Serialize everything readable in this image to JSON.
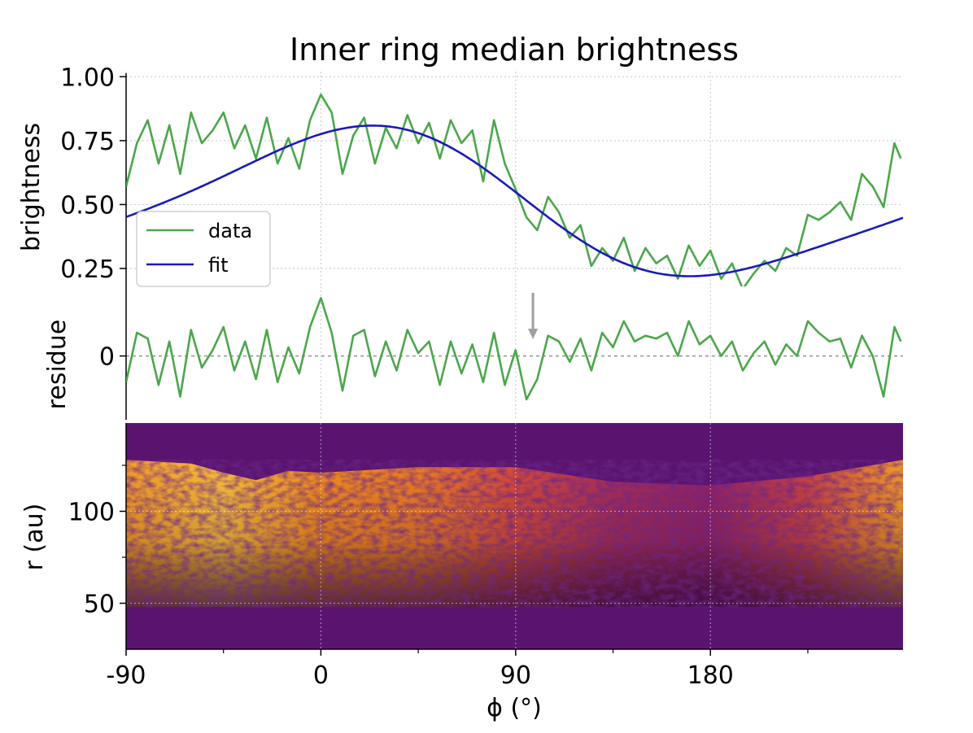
{
  "title": "Inner ring median brightness",
  "x_axis": {
    "label": "ϕ (°)",
    "ticks": [
      -90,
      0,
      90,
      180
    ],
    "tick_labels": [
      "-90",
      "0",
      "90",
      "180"
    ],
    "minor_ticks": [
      -45,
      45,
      135,
      225
    ],
    "range": [
      -90,
      269
    ]
  },
  "colors": {
    "data": "#4ca64c",
    "fit": "#1a1ab8",
    "grid": "#cfcfcf",
    "zero_line": "#999999",
    "arrow": "#a0a0a0",
    "heatmap_bg": "#5a1470"
  },
  "chart_data": [
    {
      "panel": "top",
      "type": "line",
      "title": "Inner ring median brightness",
      "xlabel": "",
      "ylabel": "brightness",
      "ylim": [
        0.18,
        1.02
      ],
      "yticks": [
        0.25,
        0.5,
        0.75,
        1.0
      ],
      "ytick_labels": [
        "0.25",
        "0.50",
        "0.75",
        "1.00"
      ],
      "grid": true,
      "legend": {
        "placement": "center-left",
        "entries": [
          "data",
          "fit"
        ]
      },
      "fit_model": {
        "offset": 0.5,
        "amp1": 0.28,
        "phase1_deg": 10,
        "amp2": 0.05,
        "phase2_deg": 45
      },
      "series": [
        {
          "name": "data",
          "x": [
            -90,
            -85,
            -80,
            -75,
            -70,
            -65,
            -60,
            -55,
            -50,
            -45,
            -40,
            -35,
            -30,
            -25,
            -20,
            -15,
            -10,
            -5,
            0,
            5,
            10,
            15,
            20,
            25,
            30,
            35,
            40,
            45,
            50,
            55,
            60,
            65,
            70,
            75,
            80,
            85,
            90,
            95,
            100,
            105,
            110,
            115,
            120,
            125,
            130,
            135,
            140,
            145,
            150,
            155,
            160,
            165,
            170,
            175,
            180,
            185,
            190,
            195,
            200,
            205,
            210,
            215,
            220,
            225,
            230,
            235,
            240,
            245,
            250,
            255,
            260,
            265,
            268
          ],
          "y": [
            0.57,
            0.74,
            0.83,
            0.66,
            0.81,
            0.62,
            0.86,
            0.74,
            0.79,
            0.86,
            0.72,
            0.81,
            0.68,
            0.84,
            0.66,
            0.76,
            0.64,
            0.83,
            0.93,
            0.86,
            0.62,
            0.77,
            0.84,
            0.66,
            0.8,
            0.72,
            0.85,
            0.74,
            0.82,
            0.68,
            0.83,
            0.74,
            0.79,
            0.59,
            0.83,
            0.66,
            0.56,
            0.45,
            0.4,
            0.53,
            0.47,
            0.37,
            0.42,
            0.26,
            0.33,
            0.28,
            0.37,
            0.24,
            0.33,
            0.27,
            0.3,
            0.21,
            0.34,
            0.26,
            0.32,
            0.21,
            0.27,
            0.17,
            0.23,
            0.28,
            0.24,
            0.33,
            0.3,
            0.46,
            0.44,
            0.47,
            0.51,
            0.44,
            0.62,
            0.57,
            0.49,
            0.74,
            0.68
          ]
        },
        {
          "name": "fit",
          "x_range": [
            -90,
            269
          ]
        }
      ]
    },
    {
      "panel": "middle",
      "type": "line",
      "xlabel": "",
      "ylabel": "residue",
      "ylim": [
        -0.22,
        0.24
      ],
      "yticks": [
        0
      ],
      "ytick_labels": [
        "0"
      ],
      "grid": true,
      "annotation": {
        "type": "arrow",
        "x": 98,
        "direction": "down"
      },
      "series": [
        {
          "name": "data",
          "x": [
            -90,
            -85,
            -80,
            -75,
            -70,
            -65,
            -60,
            -55,
            -50,
            -45,
            -40,
            -35,
            -30,
            -25,
            -20,
            -15,
            -10,
            -5,
            0,
            5,
            10,
            15,
            20,
            25,
            30,
            35,
            40,
            45,
            50,
            55,
            60,
            65,
            70,
            75,
            80,
            85,
            90,
            95,
            100,
            105,
            110,
            115,
            120,
            125,
            130,
            135,
            140,
            145,
            150,
            155,
            160,
            165,
            170,
            175,
            180,
            185,
            190,
            195,
            200,
            205,
            210,
            215,
            220,
            225,
            230,
            235,
            240,
            245,
            250,
            255,
            260,
            265,
            268
          ],
          "y": [
            -0.09,
            0.08,
            0.06,
            -0.1,
            0.05,
            -0.14,
            0.09,
            -0.04,
            0.02,
            0.1,
            -0.05,
            0.05,
            -0.08,
            0.09,
            -0.09,
            0.03,
            -0.06,
            0.1,
            0.2,
            0.08,
            -0.12,
            0.07,
            0.09,
            -0.07,
            0.05,
            -0.05,
            0.09,
            0.01,
            0.05,
            -0.1,
            0.05,
            -0.06,
            0.04,
            -0.09,
            0.08,
            -0.1,
            0.02,
            -0.15,
            -0.08,
            0.07,
            0.05,
            -0.02,
            0.06,
            -0.05,
            0.08,
            0.03,
            0.12,
            0.05,
            0.07,
            0.06,
            0.08,
            0.0,
            0.12,
            0.04,
            0.07,
            0.0,
            0.05,
            -0.05,
            0.01,
            0.05,
            -0.03,
            0.04,
            0.0,
            0.12,
            0.08,
            0.05,
            0.06,
            -0.04,
            0.07,
            0.0,
            -0.14,
            0.1,
            0.05
          ]
        }
      ]
    },
    {
      "panel": "bottom",
      "type": "heatmap",
      "xlabel": "ϕ (°)",
      "ylabel": "r (au)",
      "ylim": [
        25,
        148
      ],
      "yticks": [
        50,
        100
      ],
      "ytick_labels": [
        "50",
        "100"
      ],
      "minor_yticks": [
        75,
        125
      ],
      "colormap": "inferno",
      "grid": true,
      "outer_edge_r": [
        [
          -90,
          128
        ],
        [
          -60,
          126
        ],
        [
          -45,
          121
        ],
        [
          -30,
          117
        ],
        [
          -15,
          122
        ],
        [
          0,
          121
        ],
        [
          45,
          124
        ],
        [
          90,
          124
        ],
        [
          135,
          116
        ],
        [
          180,
          114
        ],
        [
          225,
          119
        ],
        [
          269,
          128
        ]
      ],
      "inner_edge_r": 48,
      "intensity_profile": [
        [
          -90,
          0.85
        ],
        [
          -45,
          0.95
        ],
        [
          0,
          0.8
        ],
        [
          45,
          0.75
        ],
        [
          90,
          0.6
        ],
        [
          135,
          0.42
        ],
        [
          180,
          0.35
        ],
        [
          225,
          0.55
        ],
        [
          269,
          0.85
        ]
      ]
    }
  ]
}
